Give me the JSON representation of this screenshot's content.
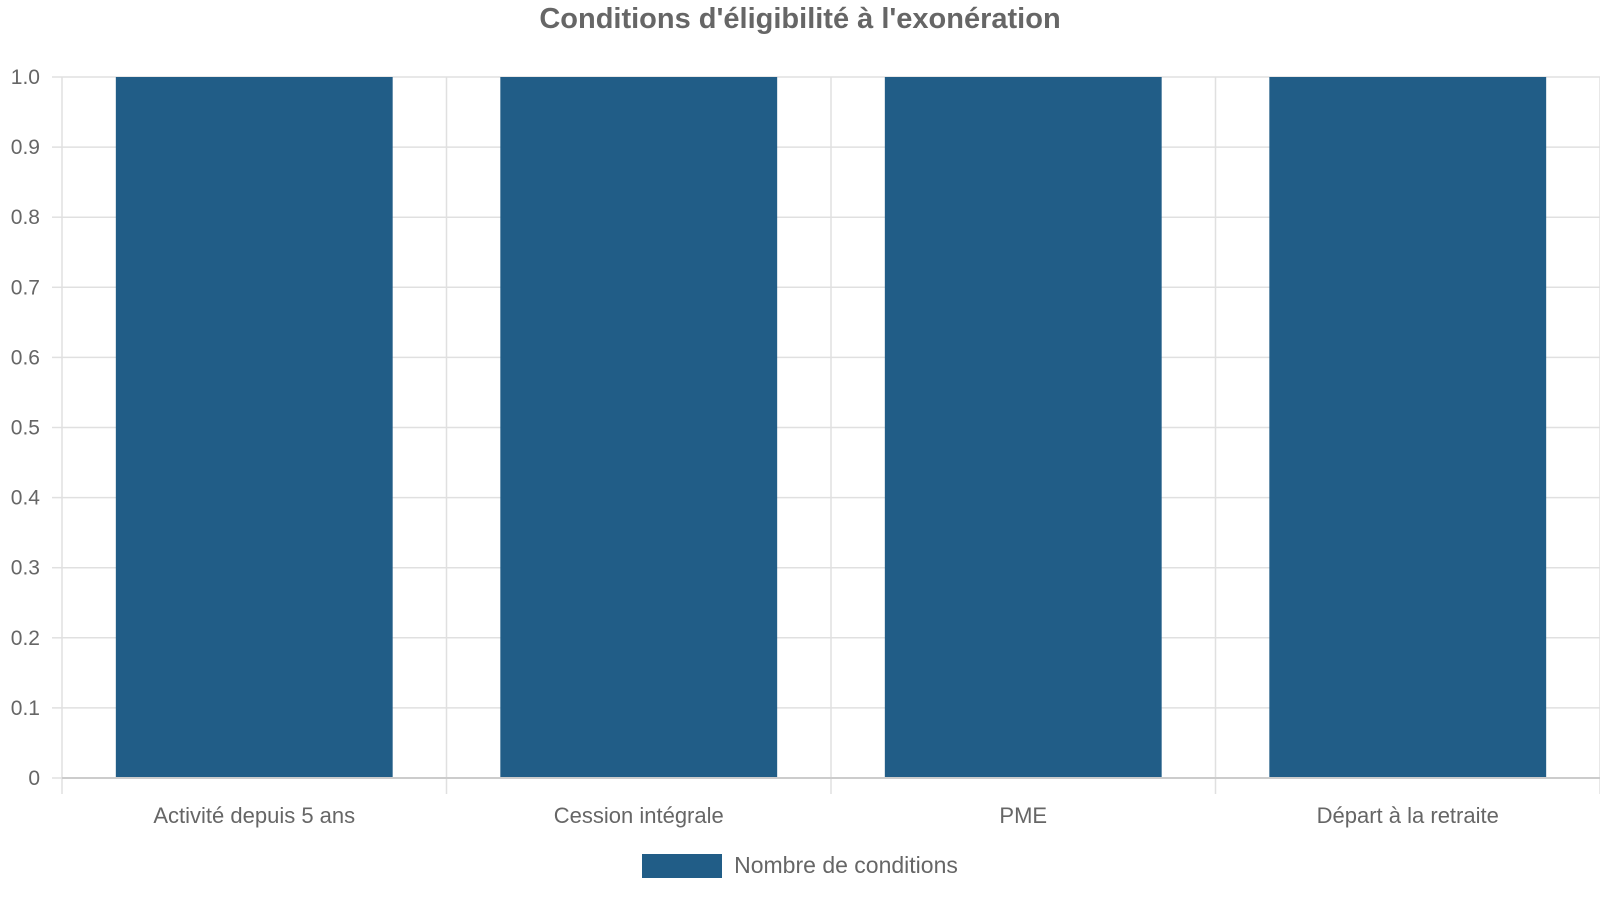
{
  "chart_data": {
    "type": "bar",
    "title": "Conditions d'éligibilité à l'exonération",
    "categories": [
      "Activité depuis 5 ans",
      "Cession intégrale",
      "PME",
      "Départ à la retraite"
    ],
    "series": [
      {
        "name": "Nombre de conditions",
        "values": [
          1,
          1,
          1,
          1
        ]
      }
    ],
    "xlabel": "",
    "ylabel": "",
    "ylim": [
      0,
      1.0
    ],
    "yticks": [
      "0",
      "0.1",
      "0.2",
      "0.3",
      "0.4",
      "0.5",
      "0.6",
      "0.7",
      "0.8",
      "0.9",
      "1.0"
    ],
    "grid": true,
    "legend_position": "bottom",
    "colors": {
      "bar": "#215d87",
      "grid": "#e0e0e0",
      "text": "#666666"
    }
  }
}
